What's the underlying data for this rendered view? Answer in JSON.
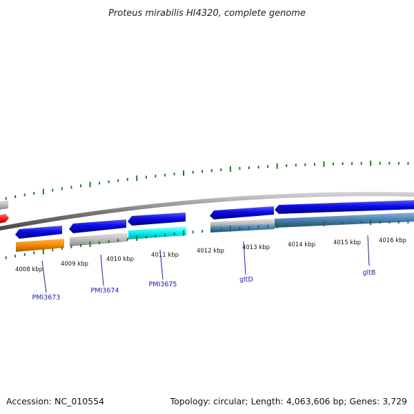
{
  "title": "Proteus mirabilis HI4320, complete genome",
  "footer": {
    "accession": "Accession: NC_010554",
    "summary": "Topology: circular; Length: 4,063,606 bp; Genes: 3,729"
  },
  "colors": {
    "backbone": "#8a8a8a",
    "gc_skew_ticks": "#1b7a1b",
    "label_line": "#1a1aa8",
    "blue": "#0a0ae6",
    "orange": "#f28a00",
    "gray": "#bdbdbd",
    "cyan": "#00f0f0",
    "steel": "#4a7fb0",
    "red": "#ff1a1a"
  },
  "scale": {
    "ticks": [
      "4008 kbp",
      "4009 kbp",
      "4010 kbp",
      "4011 kbp",
      "4012 kbp",
      "4013 kbp",
      "4014 kbp",
      "4015 kbp",
      "4016 kbp"
    ]
  },
  "genes": [
    "PMI3673",
    "PMI3674",
    "PMI3675",
    "gltD",
    "gltB"
  ]
}
